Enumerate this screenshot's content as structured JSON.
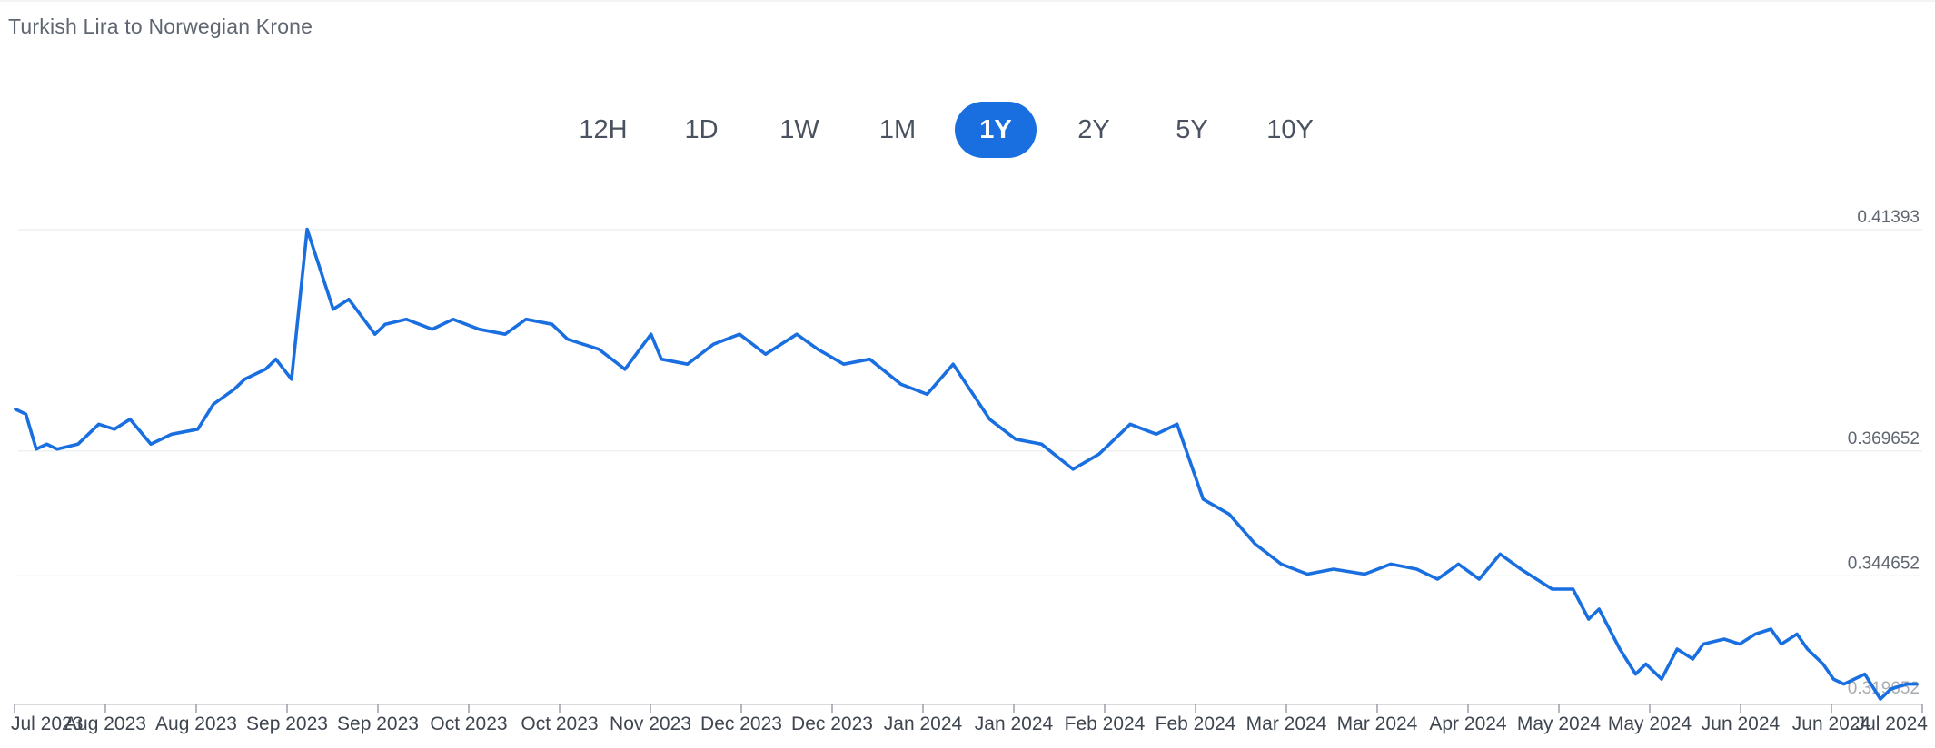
{
  "title": "Turkish Lira to Norwegian Krone",
  "ranges": [
    {
      "label": "12H",
      "active": false
    },
    {
      "label": "1D",
      "active": false
    },
    {
      "label": "1W",
      "active": false
    },
    {
      "label": "1M",
      "active": false
    },
    {
      "label": "1Y",
      "active": true
    },
    {
      "label": "2Y",
      "active": false
    },
    {
      "label": "5Y",
      "active": false
    },
    {
      "label": "10Y",
      "active": false
    }
  ],
  "colors": {
    "line": "#1a6fe0",
    "active_button": "#1a6fe0"
  },
  "chart_data": {
    "type": "line",
    "title": "Turkish Lira to Norwegian Krone",
    "xlabel": "",
    "ylabel": "",
    "grid": true,
    "y_axis_side": "right",
    "ylim": [
      0.319652,
      0.41393
    ],
    "y_ticks": [
      0.41393,
      0.369652,
      0.344652,
      0.319652
    ],
    "y_tick_labels": [
      "0.41393",
      "0.369652",
      "0.344652",
      "0.319652"
    ],
    "x_tick_labels": [
      "Jul 2023",
      "Aug 2023",
      "Aug 2023",
      "Sep 2023",
      "Sep 2023",
      "Oct 2023",
      "Oct 2023",
      "Nov 2023",
      "Dec 2023",
      "Dec 2023",
      "Jan 2024",
      "Jan 2024",
      "Feb 2024",
      "Feb 2024",
      "Mar 2024",
      "Mar 2024",
      "Apr 2024",
      "May 2024",
      "May 2024",
      "Jun 2024",
      "Jun 2024",
      "Jul 2024"
    ],
    "series": [
      {
        "x": [
          0,
          2,
          4,
          6,
          8,
          12,
          16,
          19,
          22,
          26,
          30,
          35,
          38,
          42,
          44,
          48,
          50,
          53,
          56,
          61,
          64,
          69,
          71,
          75,
          80,
          84,
          89,
          94,
          98,
          103,
          106,
          112,
          117,
          122,
          124,
          129,
          134,
          139,
          144,
          150,
          154,
          159,
          164,
          170,
          175,
          180,
          187,
          192,
          197,
          203,
          208,
          214,
          219,
          223,
          228,
          233,
          238,
          243,
          248,
          253,
          259,
          264,
          269,
          273,
          277,
          281,
          285,
          289,
          292,
          295,
          299,
          302,
          304,
          308,
          311,
          313,
          316,
          319,
          322,
          324,
          328,
          331,
          334,
          337,
          339,
          342,
          344,
          347,
          349,
          351,
          355,
          358,
          360,
          363,
          365
        ],
        "y": [
          0.378,
          0.377,
          0.37,
          0.371,
          0.37,
          0.371,
          0.375,
          0.374,
          0.376,
          0.371,
          0.373,
          0.374,
          0.379,
          0.382,
          0.384,
          0.386,
          0.388,
          0.384,
          0.414,
          0.398,
          0.4,
          0.393,
          0.395,
          0.396,
          0.394,
          0.396,
          0.394,
          0.393,
          0.396,
          0.395,
          0.392,
          0.39,
          0.386,
          0.393,
          0.388,
          0.387,
          0.391,
          0.393,
          0.389,
          0.393,
          0.39,
          0.387,
          0.388,
          0.383,
          0.381,
          0.387,
          0.376,
          0.372,
          0.371,
          0.366,
          0.369,
          0.375,
          0.373,
          0.375,
          0.36,
          0.357,
          0.351,
          0.347,
          0.345,
          0.346,
          0.345,
          0.347,
          0.346,
          0.344,
          0.347,
          0.344,
          0.349,
          0.346,
          0.344,
          0.342,
          0.342,
          0.336,
          0.338,
          0.33,
          0.325,
          0.327,
          0.324,
          0.33,
          0.328,
          0.331,
          0.332,
          0.331,
          0.333,
          0.334,
          0.331,
          0.333,
          0.33,
          0.327,
          0.324,
          0.323,
          0.325,
          0.32,
          0.322,
          0.323,
          0.323
        ]
      }
    ]
  }
}
